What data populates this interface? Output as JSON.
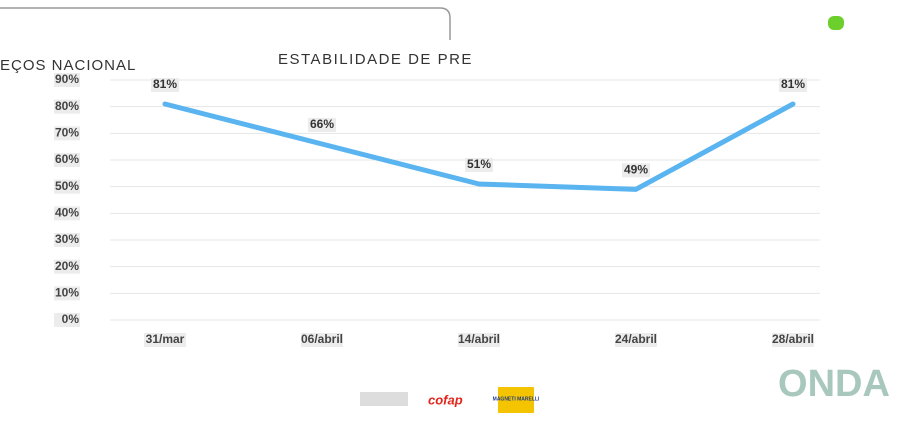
{
  "header": {
    "left_text": "EÇOS NACIONAL",
    "title": "ESTABILIDADE DE PRE"
  },
  "chart_data": {
    "type": "line",
    "categories": [
      "31/mar",
      "06/abril",
      "14/abril",
      "24/abril",
      "28/abril"
    ],
    "values": [
      81,
      66,
      51,
      49,
      81
    ],
    "value_labels": [
      "81%",
      "66%",
      "51%",
      "49%",
      "81%"
    ],
    "color": "#5ab4f0",
    "ylim": [
      0,
      90
    ],
    "yticks": [
      {
        "value": 0,
        "label": "0%"
      },
      {
        "value": 10,
        "label": "10%"
      },
      {
        "value": 20,
        "label": "20%"
      },
      {
        "value": 30,
        "label": "30%"
      },
      {
        "value": 40,
        "label": "40%"
      },
      {
        "value": 50,
        "label": "50%"
      },
      {
        "value": 60,
        "label": "60%"
      },
      {
        "value": 70,
        "label": "70%"
      },
      {
        "value": 80,
        "label": "80%"
      },
      {
        "value": 90,
        "label": "90%"
      }
    ],
    "grid": true
  },
  "footer": {
    "brand_1": "cofap",
    "brand_2": "MAGNETI MARELLI",
    "logo": "ONDA"
  }
}
